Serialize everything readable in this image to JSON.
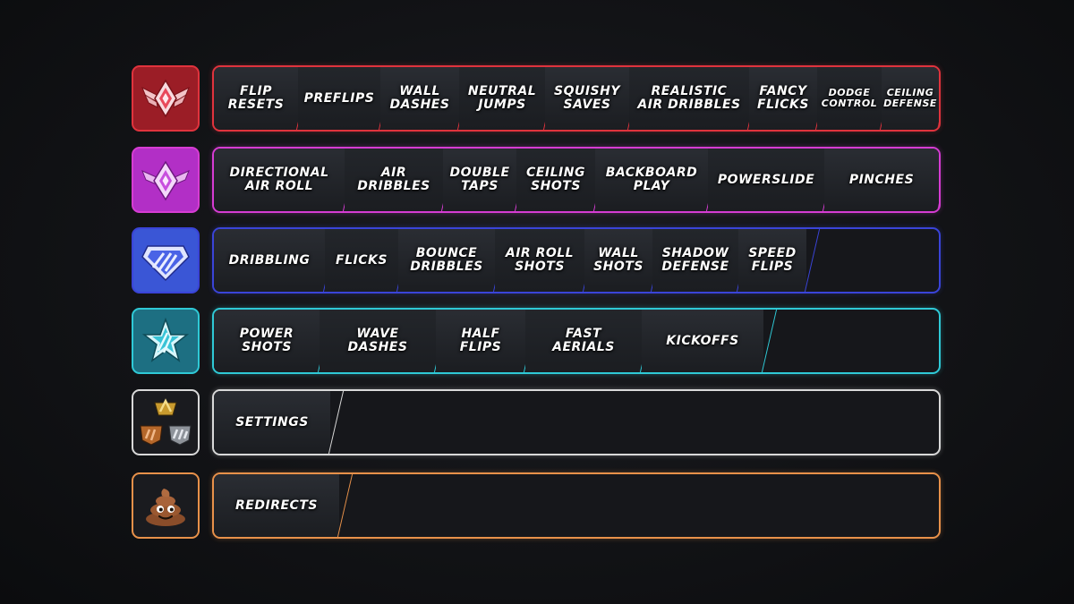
{
  "tiers": [
    {
      "rank_icon": "grand-champion-icon",
      "color": "#e0333d",
      "badge_bg": "#9b1d26",
      "tiles": [
        {
          "label": "FLIP\nRESETS",
          "size": 14
        },
        {
          "label": "PREFLIPS",
          "size": 14
        },
        {
          "label": "WALL\nDASHES",
          "size": 14
        },
        {
          "label": "NEUTRAL\nJUMPS",
          "size": 14
        },
        {
          "label": "SQUISHY\nSAVES",
          "size": 14
        },
        {
          "label": "REALISTIC\nAIR DRIBBLES",
          "size": 14
        },
        {
          "label": "FANCY\nFLICKS",
          "size": 14
        },
        {
          "label": "DODGE\nCONTROL",
          "size": 11
        },
        {
          "label": "CEILING\nDEFENSE",
          "size": 11
        }
      ]
    },
    {
      "rank_icon": "champion-icon",
      "color": "#d63cd3",
      "badge_bg": "#b22fc6",
      "tiles": [
        {
          "label": "DIRECTIONAL\nAIR ROLL",
          "size": 14
        },
        {
          "label": "AIR\nDRIBBLES",
          "size": 14
        },
        {
          "label": "DOUBLE\nTAPS",
          "size": 14
        },
        {
          "label": "CEILING\nSHOTS",
          "size": 14
        },
        {
          "label": "BACKBOARD\nPLAY",
          "size": 14
        },
        {
          "label": "POWERSLIDE",
          "size": 14
        },
        {
          "label": "PINCHES",
          "size": 14
        }
      ]
    },
    {
      "rank_icon": "diamond-icon",
      "color": "#3a44d8",
      "badge_bg": "#3a56d6",
      "tiles": [
        {
          "label": "DRIBBLING",
          "size": 14
        },
        {
          "label": "FLICKS",
          "size": 14
        },
        {
          "label": "BOUNCE\nDRIBBLES",
          "size": 14
        },
        {
          "label": "AIR ROLL\nSHOTS",
          "size": 14
        },
        {
          "label": "WALL\nSHOTS",
          "size": 14
        },
        {
          "label": "SHADOW\nDEFENSE",
          "size": 14
        },
        {
          "label": "SPEED\nFLIPS",
          "size": 14
        }
      ]
    },
    {
      "rank_icon": "platinum-icon",
      "color": "#2fc9d6",
      "badge_bg": "#1d6f82",
      "tiles": [
        {
          "label": "POWER\nSHOTS",
          "size": 14
        },
        {
          "label": "WAVE\nDASHES",
          "size": 14
        },
        {
          "label": "HALF\nFLIPS",
          "size": 14
        },
        {
          "label": "FAST\nAERIALS",
          "size": 14
        },
        {
          "label": "KICKOFFS",
          "size": 14
        }
      ]
    },
    {
      "rank_icon": "bronze-silver-gold-icon",
      "color": "#d9d9d9",
      "badge_bg": "#1a1b1f",
      "tiles": [
        {
          "label": "SETTINGS",
          "size": 14
        }
      ]
    },
    {
      "rank_icon": "poop-emoji-icon",
      "color": "#e8914a",
      "badge_bg": "#1a1b1f",
      "tiles": [
        {
          "label": "REDIRECTS",
          "size": 14
        }
      ]
    }
  ]
}
